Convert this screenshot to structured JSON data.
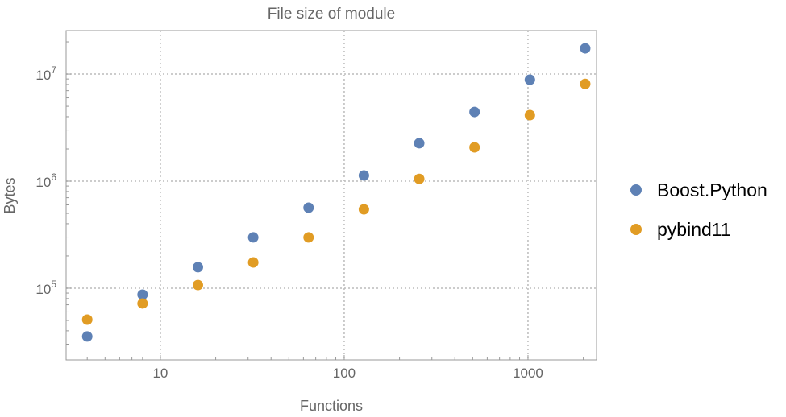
{
  "chart_data": {
    "type": "scatter",
    "title": "File size of module",
    "xlabel": "Functions",
    "ylabel": "Bytes",
    "xscale": "log",
    "yscale": "log",
    "xlim": [
      3.07,
      2360
    ],
    "ylim": [
      21400,
      25500000
    ],
    "grid": true,
    "legend_position": "right",
    "x_ticks": [
      {
        "value": 10,
        "label": "10"
      },
      {
        "value": 100,
        "label": "100"
      },
      {
        "value": 1000,
        "label": "1000"
      }
    ],
    "y_ticks": [
      {
        "value": 100000,
        "base": "10",
        "exp": "5"
      },
      {
        "value": 1000000,
        "base": "10",
        "exp": "6"
      },
      {
        "value": 10000000,
        "base": "10",
        "exp": "7"
      }
    ],
    "x": [
      4,
      8,
      16,
      32,
      64,
      128,
      256,
      512,
      1024,
      2048
    ],
    "series": [
      {
        "name": "Boost.Python",
        "color": "#5e81b5",
        "values": [
          35400,
          87000,
          157000,
          298000,
          565000,
          1130000,
          2260000,
          4430000,
          8860000,
          17400000
        ]
      },
      {
        "name": "pybind11",
        "color": "#e19c24",
        "values": [
          50900,
          72000,
          107000,
          174000,
          298000,
          545000,
          1050000,
          2070000,
          4140000,
          8100000
        ]
      }
    ]
  }
}
